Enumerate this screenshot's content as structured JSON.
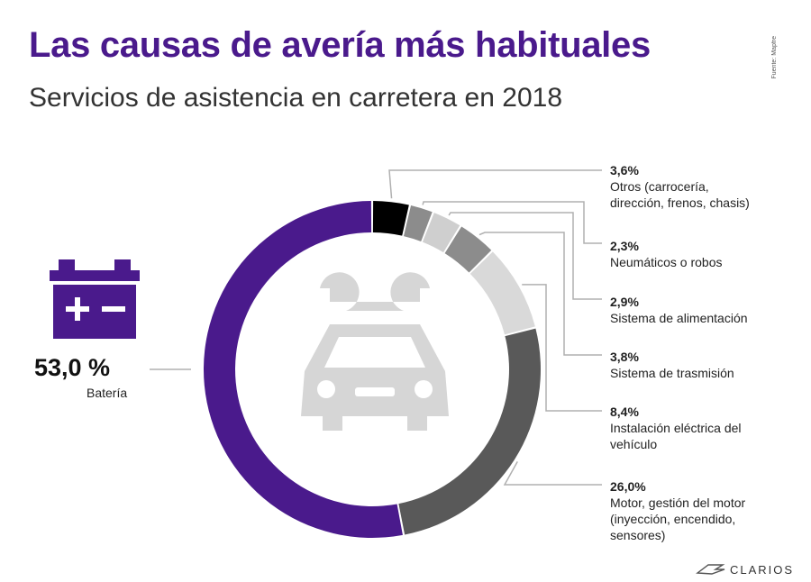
{
  "title": "Las causas de avería más habituales",
  "subtitle": "Servicios de asistencia en carretera en 2018",
  "source": "Fuente: Mapfre",
  "brand": "CLARIOS",
  "icons": {
    "battery": "battery-icon",
    "car": "car-icon",
    "wrench": "wrench-icon"
  },
  "colors": {
    "accent": "#4a1a8c",
    "black": "#000000",
    "grey": "#8c8c8c",
    "light": "#cfcfcf",
    "lighter": "#d9d9d9",
    "dark": "#595959",
    "icon": "#d6d6d6"
  },
  "chart_data": {
    "type": "pie",
    "title": "Las causas de avería más habituales",
    "subtitle": "Servicios de asistencia en carretera en 2018",
    "unit": "%",
    "slices": [
      {
        "label": "Otros (carrocería, dirección, frenos, chasis)",
        "value": 3.6,
        "display": "3,6%",
        "lines": [
          "Otros (carrocería,",
          "dirección, frenos, chasis)"
        ],
        "color": "#000000"
      },
      {
        "label": "Neumáticos o robos",
        "value": 2.3,
        "display": "2,3%",
        "lines": [
          "Neumáticos o robos"
        ],
        "color": "#8c8c8c"
      },
      {
        "label": "Sistema de alimentación",
        "value": 2.9,
        "display": "2,9%",
        "lines": [
          "Sistema de alimentación"
        ],
        "color": "#cfcfcf"
      },
      {
        "label": "Sistema de trasmisión",
        "value": 3.8,
        "display": "3,8%",
        "lines": [
          "Sistema de trasmisión"
        ],
        "color": "#8c8c8c"
      },
      {
        "label": "Instalación eléctrica del vehículo",
        "value": 8.4,
        "display": "8,4%",
        "lines": [
          "Instalación eléctrica del",
          "vehículo"
        ],
        "color": "#d9d9d9"
      },
      {
        "label": "Motor, gestión del motor (inyección, encendido, sensores)",
        "value": 26.0,
        "display": "26,0%",
        "lines": [
          "Motor, gestión del motor",
          "(inyección, encendido,",
          "sensores)"
        ],
        "color": "#595959"
      },
      {
        "label": "Batería",
        "value": 53.0,
        "display": "53,0 %",
        "lines": [
          "Batería"
        ],
        "color": "#4a1a8c"
      }
    ]
  }
}
